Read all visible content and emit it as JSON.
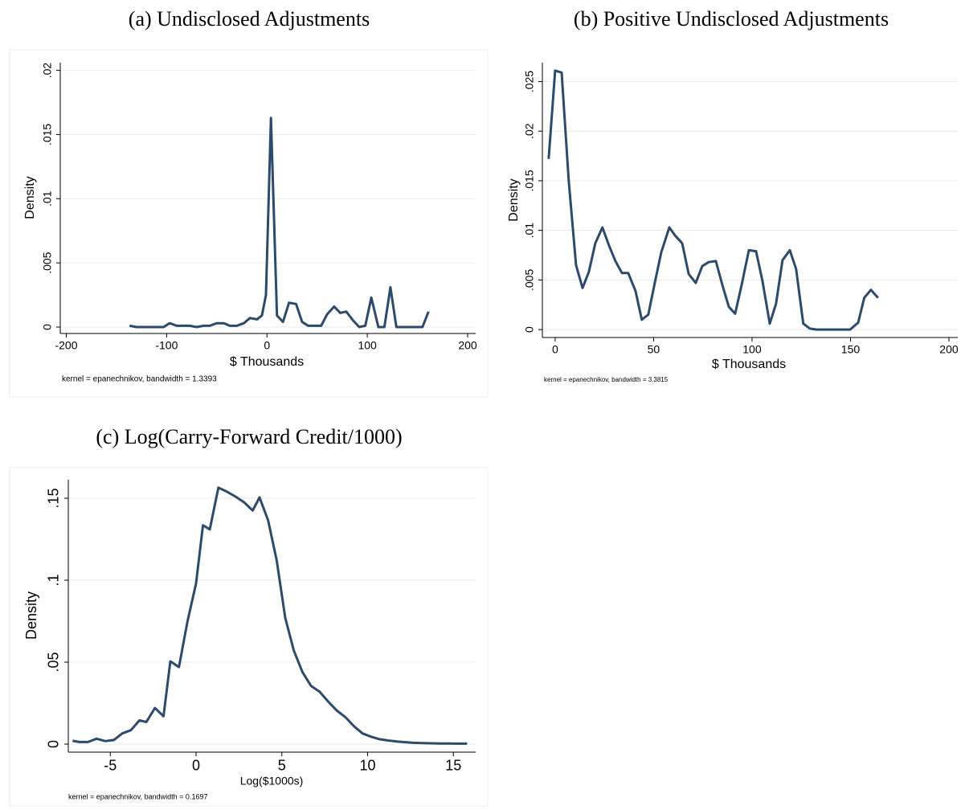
{
  "chart_data": [
    {
      "type": "line",
      "title": "(a) Undisclosed Adjustments",
      "x_label": "$ Thousands",
      "y_label": "Density",
      "note": "kernel = epanechnikov, bandwidth = 1.3393",
      "color": "#2c4a6b",
      "grid": true,
      "xlim": [
        -206,
        208
      ],
      "ylim": [
        -0.0005,
        0.0206
      ],
      "xticks": [
        -200,
        -100,
        0,
        100,
        200
      ],
      "yticks": [
        0,
        {
          "value": 0.005,
          "label": ".005"
        },
        {
          "value": 0.01,
          "label": ".01"
        },
        {
          "value": 0.015,
          "label": ".015"
        },
        {
          "value": 0.02,
          "label": ".02"
        }
      ],
      "x": [
        -137,
        -130,
        -123,
        -116,
        -110,
        -103,
        -97,
        -90,
        -83,
        -77,
        -70,
        -63,
        -57,
        -50,
        -43,
        -37,
        -30,
        -23,
        -17,
        -10,
        -5,
        -1,
        4,
        10,
        16,
        22,
        29,
        35,
        41,
        48,
        54,
        60,
        67,
        73,
        79,
        86,
        92,
        98,
        104,
        111,
        117,
        123,
        129,
        136,
        142,
        148,
        155,
        161
      ],
      "values": [
        0.0001,
        0,
        0,
        0,
        0,
        0,
        0.0003,
        0.0001,
        0.0001,
        0.0001,
        0,
        0.0001,
        0.0001,
        0.0003,
        0.0003,
        0.0001,
        0.0001,
        0.0003,
        0.0007,
        0.0006,
        0.0009,
        0.0025,
        0.0163,
        0.0009,
        0.0004,
        0.0019,
        0.0018,
        0.0004,
        0.0001,
        0.0001,
        0.0001,
        0.001,
        0.0016,
        0.0011,
        0.0012,
        0.0005,
        0,
        0.0001,
        0.0023,
        0,
        0,
        0.0031,
        0,
        0,
        0,
        0,
        0,
        0.0012
      ]
    },
    {
      "type": "line",
      "title": "(b) Positive Undisclosed Adjustments",
      "x_label": "$ Thousands",
      "y_label": "Density",
      "note": "kernel = epanechnikov, bandwidth = 3.3815",
      "color": "#2c4a6b",
      "grid": true,
      "xlim": [
        -6.5,
        204.5
      ],
      "ylim": [
        -0.0008,
        0.0269
      ],
      "xticks": [
        0,
        50,
        100,
        150,
        200
      ],
      "yticks": [
        0,
        {
          "value": 0.005,
          "label": ".005"
        },
        {
          "value": 0.01,
          "label": ".01"
        },
        {
          "value": 0.015,
          "label": ".015"
        },
        {
          "value": 0.02,
          "label": ".02"
        },
        {
          "value": 0.025,
          "label": ".025"
        }
      ],
      "x": [
        -3.3,
        0,
        3.3,
        6.9,
        10.6,
        13.9,
        17.1,
        20.4,
        24,
        27.3,
        30.6,
        33.9,
        37.1,
        40.8,
        44,
        47.3,
        50.6,
        53.9,
        58,
        60.8,
        64.5,
        67.8,
        71.4,
        74.7,
        78,
        81.6,
        84.9,
        88.2,
        91.4,
        94.7,
        98.4,
        102,
        105.3,
        109,
        112.2,
        115.5,
        119.2,
        122.4,
        126,
        129.4,
        132.7,
        136.3,
        139.6,
        142.9,
        146.5,
        149.8,
        153.9,
        157,
        160.4,
        164
      ],
      "values": [
        0.0172,
        0.0261,
        0.0259,
        0.015,
        0.0065,
        0.0042,
        0.0058,
        0.0087,
        0.0103,
        0.0085,
        0.0069,
        0.0057,
        0.0057,
        0.0039,
        0.001,
        0.0015,
        0.0047,
        0.0078,
        0.0103,
        0.0095,
        0.0087,
        0.0056,
        0.0047,
        0.0064,
        0.0068,
        0.0069,
        0.0045,
        0.0023,
        0.0016,
        0.0045,
        0.008,
        0.0079,
        0.0049,
        0.0006,
        0.0026,
        0.007,
        0.008,
        0.0061,
        0.0006,
        0.0001,
        0,
        0,
        0,
        0,
        0,
        0,
        0.0007,
        0.0032,
        0.004,
        0.0032
      ]
    },
    {
      "type": "line",
      "title": "(c) Log(Carry-Forward Credit/1000)",
      "x_label": "Log($1000s)",
      "y_label": "Density",
      "note": "kernel = epanechnikov, bandwidth = 0.1697",
      "color": "#2c4a6b",
      "grid": true,
      "xlim": [
        -7.45,
        16.3
      ],
      "ylim": [
        -0.0049,
        0.1613
      ],
      "xticks": [
        -5,
        0,
        5,
        10,
        15
      ],
      "yticks": [
        0,
        {
          "value": 0.05,
          "label": ".05"
        },
        {
          "value": 0.1,
          "label": ".1"
        },
        {
          "value": 0.15,
          "label": ".15"
        }
      ],
      "x": [
        -7.2,
        -6.8,
        -6.3,
        -5.8,
        -5.3,
        -4.8,
        -4.3,
        -3.8,
        -3.3,
        -2.9,
        -2.4,
        -1.9,
        -1.5,
        -1.0,
        -0.5,
        0,
        0.4,
        0.8,
        1.3,
        1.8,
        2.3,
        2.8,
        3.3,
        3.7,
        4.2,
        4.7,
        5.2,
        5.7,
        6.2,
        6.7,
        7.2,
        7.7,
        8.2,
        8.7,
        9.2,
        9.7,
        10.2,
        10.7,
        11.2,
        11.7,
        12.2,
        12.7,
        13.2,
        13.7,
        14.2,
        14.7,
        15.2,
        15.8
      ],
      "values": [
        0.002,
        0.0013,
        0.0013,
        0.0033,
        0.0018,
        0.0025,
        0.0065,
        0.0085,
        0.0145,
        0.0135,
        0.022,
        0.017,
        0.0505,
        0.047,
        0.075,
        0.098,
        0.1335,
        0.131,
        0.1565,
        0.154,
        0.151,
        0.1475,
        0.1425,
        0.1505,
        0.1365,
        0.112,
        0.077,
        0.057,
        0.044,
        0.0355,
        0.032,
        0.026,
        0.0205,
        0.0165,
        0.011,
        0.0065,
        0.0045,
        0.003,
        0.0022,
        0.0016,
        0.0012,
        0.0008,
        0.0006,
        0.0005,
        0.0004,
        0.0004,
        0.0003,
        0.0003
      ]
    }
  ]
}
